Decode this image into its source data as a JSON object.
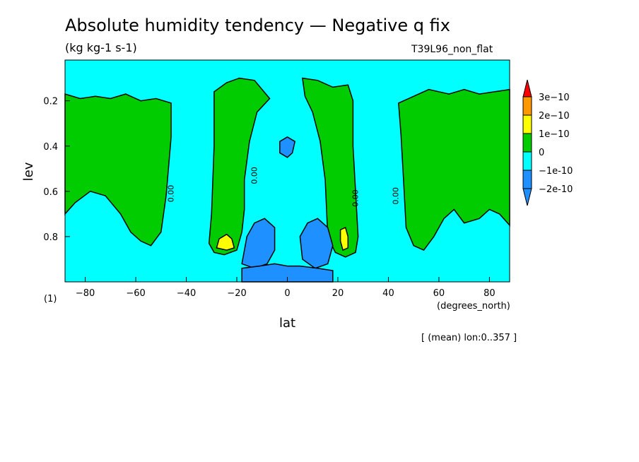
{
  "title": "Absolute humidity tendency — Negative q fix",
  "units": "(kg kg-1 s-1)",
  "run_label": "T39L96_non_flat",
  "panel_index": "(1)",
  "x_units": "(degrees_north)",
  "mean_note": "[ (mean) lon:0..357 ]",
  "colors": {
    "lt_neg2": "#1e90ff",
    "neg2_neg1": "#1e90ff",
    "neg1_0": "#00ffff",
    "0_1": "#00cc00",
    "1_2": "#ffff00",
    "2_3": "#ff9900",
    "gt_3": "#ff0000"
  },
  "chart_data": {
    "type": "heatmap",
    "subtype": "filled contour",
    "xlabel": "lat",
    "ylabel": "lev",
    "xlim": [
      -88,
      88
    ],
    "ylim": [
      1.0,
      0.02
    ],
    "y_inverted": true,
    "xticks": [
      -80,
      -60,
      -40,
      -20,
      0,
      20,
      40,
      60,
      80
    ],
    "yticks": [
      0.2,
      0.4,
      0.6,
      0.8
    ],
    "contour_labels": [
      "0.00",
      "0.00",
      "0.00",
      "0.00"
    ],
    "colorbar": {
      "labels": [
        "3e-10",
        "2e-10",
        "1e-10",
        "0",
        "-1e-10",
        "-2e-10"
      ],
      "levels": [
        -2e-10,
        -1e-10,
        0,
        1e-10,
        2e-10,
        3e-10
      ],
      "colors": [
        "#1e90ff",
        "#1e90ff",
        "#00ffff",
        "#00cc00",
        "#ffff00",
        "#ff9900",
        "#ff0000"
      ]
    },
    "regions": [
      {
        "name": "positive-southern-polar",
        "class": "0_1",
        "poly": [
          [
            -88,
            0.17
          ],
          [
            -82,
            0.19
          ],
          [
            -76,
            0.18
          ],
          [
            -70,
            0.19
          ],
          [
            -64,
            0.17
          ],
          [
            -58,
            0.2
          ],
          [
            -52,
            0.19
          ],
          [
            -46,
            0.21
          ],
          [
            -46,
            0.36
          ],
          [
            -48,
            0.62
          ],
          [
            -50,
            0.78
          ],
          [
            -54,
            0.84
          ],
          [
            -58,
            0.82
          ],
          [
            -62,
            0.78
          ],
          [
            -66,
            0.7
          ],
          [
            -72,
            0.62
          ],
          [
            -78,
            0.6
          ],
          [
            -84,
            0.65
          ],
          [
            -88,
            0.7
          ]
        ]
      },
      {
        "name": "positive-southern-subtropics",
        "class": "0_1",
        "poly": [
          [
            -29,
            0.16
          ],
          [
            -24,
            0.12
          ],
          [
            -19,
            0.1
          ],
          [
            -13,
            0.11
          ],
          [
            -7,
            0.19
          ],
          [
            -12,
            0.25
          ],
          [
            -15,
            0.38
          ],
          [
            -17,
            0.55
          ],
          [
            -17,
            0.68
          ],
          [
            -18,
            0.78
          ],
          [
            -20,
            0.86
          ],
          [
            -25,
            0.88
          ],
          [
            -29,
            0.87
          ],
          [
            -31,
            0.83
          ],
          [
            -30,
            0.7
          ],
          [
            -29,
            0.4
          ]
        ]
      },
      {
        "name": "positive-northern-subtropics",
        "class": "0_1",
        "poly": [
          [
            6,
            0.1
          ],
          [
            12,
            0.11
          ],
          [
            18,
            0.14
          ],
          [
            24,
            0.13
          ],
          [
            26,
            0.2
          ],
          [
            26,
            0.4
          ],
          [
            27,
            0.6
          ],
          [
            28,
            0.8
          ],
          [
            27,
            0.87
          ],
          [
            23,
            0.89
          ],
          [
            19,
            0.87
          ],
          [
            16,
            0.8
          ],
          [
            15,
            0.55
          ],
          [
            13,
            0.38
          ],
          [
            10,
            0.25
          ],
          [
            7,
            0.18
          ]
        ]
      },
      {
        "name": "positive-northern-polar",
        "class": "0_1",
        "poly": [
          [
            44,
            0.21
          ],
          [
            50,
            0.18
          ],
          [
            56,
            0.15
          ],
          [
            64,
            0.17
          ],
          [
            70,
            0.15
          ],
          [
            76,
            0.17
          ],
          [
            82,
            0.16
          ],
          [
            88,
            0.15
          ],
          [
            88,
            0.75
          ],
          [
            84,
            0.7
          ],
          [
            80,
            0.68
          ],
          [
            76,
            0.72
          ],
          [
            70,
            0.74
          ],
          [
            66,
            0.68
          ],
          [
            62,
            0.72
          ],
          [
            58,
            0.8
          ],
          [
            54,
            0.86
          ],
          [
            50,
            0.84
          ],
          [
            47,
            0.76
          ],
          [
            46,
            0.55
          ],
          [
            45,
            0.35
          ]
        ]
      },
      {
        "name": "positive-core-south",
        "class": "1_2",
        "poly": [
          [
            -27,
            0.81
          ],
          [
            -24,
            0.79
          ],
          [
            -22,
            0.81
          ],
          [
            -21,
            0.85
          ],
          [
            -24,
            0.86
          ],
          [
            -28,
            0.85
          ]
        ]
      },
      {
        "name": "positive-core-north",
        "class": "1_2",
        "poly": [
          [
            21,
            0.77
          ],
          [
            23,
            0.76
          ],
          [
            24,
            0.8
          ],
          [
            24,
            0.85
          ],
          [
            22,
            0.86
          ],
          [
            21,
            0.82
          ]
        ]
      },
      {
        "name": "negative-southern-lobe",
        "class": "neg2_neg1",
        "poly": [
          [
            -18,
            0.92
          ],
          [
            -16,
            0.8
          ],
          [
            -13,
            0.74
          ],
          [
            -9,
            0.72
          ],
          [
            -5,
            0.76
          ],
          [
            -5,
            0.86
          ],
          [
            -8,
            0.92
          ],
          [
            -13,
            0.94
          ]
        ]
      },
      {
        "name": "negative-northern-lobe",
        "class": "neg2_neg1",
        "poly": [
          [
            5,
            0.8
          ],
          [
            8,
            0.74
          ],
          [
            12,
            0.72
          ],
          [
            16,
            0.76
          ],
          [
            18,
            0.84
          ],
          [
            16,
            0.92
          ],
          [
            11,
            0.94
          ],
          [
            6,
            0.9
          ]
        ]
      },
      {
        "name": "negative-equatorial-surface",
        "class": "neg2_neg1",
        "poly": [
          [
            -18,
            0.94
          ],
          [
            -11,
            0.93
          ],
          [
            -5,
            0.92
          ],
          [
            0,
            0.93
          ],
          [
            5,
            0.93
          ],
          [
            12,
            0.94
          ],
          [
            18,
            0.95
          ],
          [
            18,
            1.0
          ],
          [
            -18,
            1.0
          ]
        ]
      },
      {
        "name": "negative-equatorial-upper",
        "class": "neg2_neg1",
        "poly": [
          [
            -3,
            0.38
          ],
          [
            0,
            0.36
          ],
          [
            3,
            0.38
          ],
          [
            2,
            0.43
          ],
          [
            0,
            0.45
          ],
          [
            -3,
            0.43
          ]
        ]
      }
    ]
  }
}
